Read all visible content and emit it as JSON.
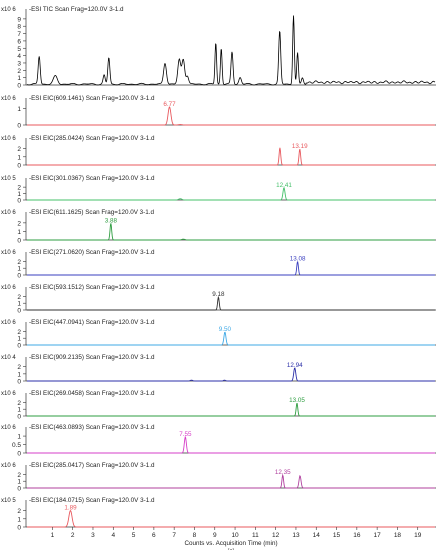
{
  "chart_data": [
    {
      "type": "line",
      "title": "-ESI TIC Scan Frag=120.0V 3-1.d",
      "exponent": "x10 6",
      "yticks": [
        0,
        1,
        2,
        3,
        4,
        5,
        6,
        7,
        8,
        9
      ],
      "ylim": [
        0,
        9.8
      ],
      "color": "#000000",
      "peaks": [
        {
          "x": 0.35,
          "y": 3.8,
          "w": 0.05
        },
        {
          "x": 1.15,
          "y": 1.1,
          "w": 0.1
        },
        {
          "x": 3.55,
          "y": 1.2,
          "w": 0.05
        },
        {
          "x": 3.78,
          "y": 3.6,
          "w": 0.05
        },
        {
          "x": 6.55,
          "y": 2.9,
          "w": 0.07
        },
        {
          "x": 7.25,
          "y": 3.3,
          "w": 0.07
        },
        {
          "x": 7.45,
          "y": 3.4,
          "w": 0.07
        },
        {
          "x": 7.65,
          "y": 1.1,
          "w": 0.06
        },
        {
          "x": 9.05,
          "y": 5.7,
          "w": 0.04
        },
        {
          "x": 9.32,
          "y": 4.9,
          "w": 0.04
        },
        {
          "x": 9.85,
          "y": 4.4,
          "w": 0.05
        },
        {
          "x": 10.25,
          "y": 0.9,
          "w": 0.06
        },
        {
          "x": 12.2,
          "y": 7.2,
          "w": 0.05
        },
        {
          "x": 12.88,
          "y": 9.4,
          "w": 0.04
        },
        {
          "x": 13.08,
          "y": 4.2,
          "w": 0.04
        },
        {
          "x": 13.32,
          "y": 0.9,
          "w": 0.05
        }
      ],
      "peak_labels": []
    },
    {
      "type": "line",
      "title": "-ESI EIC(609.1461) Scan Frag=120.0V 3-1.d",
      "exponent": "x10 6",
      "yticks": [
        0,
        1
      ],
      "ylim": [
        0,
        1.4
      ],
      "color": "#e8595e",
      "peaks": [
        {
          "x": 6.77,
          "y": 1.1,
          "w": 0.07
        },
        {
          "x": 7.3,
          "y": 0.03,
          "w": 0.08
        }
      ],
      "peak_labels": [
        {
          "x": 6.77,
          "text": "6.77"
        }
      ]
    },
    {
      "type": "line",
      "title": "-ESI EIC(285.0424) Scan Frag=120.0V 3-1.d",
      "exponent": "x10 6",
      "yticks": [
        0,
        1,
        2
      ],
      "ylim": [
        0,
        2.8
      ],
      "color": "#e8595e",
      "peaks": [
        {
          "x": 12.21,
          "y": 2.1,
          "w": 0.04
        },
        {
          "x": 13.19,
          "y": 1.95,
          "w": 0.04
        }
      ],
      "peak_labels": [
        {
          "x": 13.19,
          "text": "13.19"
        }
      ]
    },
    {
      "type": "line",
      "title": "-ESI EIC(301.0367) Scan Frag=120.0V 3-1.d",
      "exponent": "x10 5",
      "yticks": [
        0,
        1,
        2
      ],
      "ylim": [
        0,
        2.8
      ],
      "color": "#45c06a",
      "peaks": [
        {
          "x": 7.3,
          "y": 0.2,
          "w": 0.08
        },
        {
          "x": 12.41,
          "y": 1.9,
          "w": 0.05
        }
      ],
      "peak_labels": [
        {
          "x": 12.41,
          "text": "12.41"
        }
      ]
    },
    {
      "type": "line",
      "title": "-ESI EIC(611.1625) Scan Frag=120.0V 3-1.d",
      "exponent": "x10 6",
      "yticks": [
        0,
        1,
        2
      ],
      "ylim": [
        0,
        2.8
      ],
      "color": "#2e9d40",
      "peaks": [
        {
          "x": 3.88,
          "y": 1.95,
          "w": 0.04
        },
        {
          "x": 7.45,
          "y": 0.1,
          "w": 0.08
        }
      ],
      "peak_labels": [
        {
          "x": 3.88,
          "text": "3.88"
        }
      ]
    },
    {
      "type": "line",
      "title": "-ESI EIC(271.0620) Scan Frag=120.0V 3-1.d",
      "exponent": "x10 6",
      "yticks": [
        0,
        1,
        2
      ],
      "ylim": [
        0,
        2.8
      ],
      "color": "#3a3fbf",
      "peaks": [
        {
          "x": 13.08,
          "y": 2.0,
          "w": 0.04
        }
      ],
      "peak_labels": [
        {
          "x": 13.08,
          "text": "13.08"
        }
      ]
    },
    {
      "type": "line",
      "title": "-ESI EIC(593.1512) Scan Frag=120.0V 3-1.d",
      "exponent": "x10 6",
      "yticks": [
        0,
        1,
        2
      ],
      "ylim": [
        0,
        2.8
      ],
      "color": "#303030",
      "peaks": [
        {
          "x": 9.18,
          "y": 1.9,
          "w": 0.04
        }
      ],
      "peak_labels": [
        {
          "x": 9.18,
          "text": "9.18"
        }
      ]
    },
    {
      "type": "line",
      "title": "-ESI EIC(447.0941) Scan Frag=120.0V 3-1.d",
      "exponent": "x10 6",
      "yticks": [
        0,
        1,
        2
      ],
      "ylim": [
        0,
        2.8
      ],
      "color": "#3fa9e6",
      "peaks": [
        {
          "x": 9.5,
          "y": 1.9,
          "w": 0.05
        }
      ],
      "peak_labels": [
        {
          "x": 9.5,
          "text": "9.50"
        }
      ]
    },
    {
      "type": "line",
      "title": "-ESI EIC(909.2135) Scan Frag=120.0V 3-1.d",
      "exponent": "x10 4",
      "yticks": [
        0,
        1,
        2
      ],
      "ylim": [
        0,
        2.8
      ],
      "color": "#2b2fa8",
      "peaks": [
        {
          "x": 7.85,
          "y": 0.12,
          "w": 0.06
        },
        {
          "x": 9.48,
          "y": 0.12,
          "w": 0.05
        },
        {
          "x": 12.94,
          "y": 1.85,
          "w": 0.05
        }
      ],
      "peak_labels": [
        {
          "x": 12.94,
          "text": "12.94"
        }
      ]
    },
    {
      "type": "line",
      "title": "-ESI EIC(269.0458) Scan Frag=120.0V 3-1.d",
      "exponent": "x10 6",
      "yticks": [
        0,
        1,
        2
      ],
      "ylim": [
        0,
        2.8
      ],
      "color": "#2e9d40",
      "peaks": [
        {
          "x": 13.05,
          "y": 1.9,
          "w": 0.04
        }
      ],
      "peak_labels": [
        {
          "x": 13.05,
          "text": "13.05"
        }
      ]
    },
    {
      "type": "line",
      "title": "-ESI EIC(463.0893) Scan Frag=120.0V 3-1.d",
      "exponent": "x10 6",
      "yticks": [
        0,
        0.5,
        1
      ],
      "ylim": [
        0,
        1.3
      ],
      "color": "#d63fc8",
      "peaks": [
        {
          "x": 7.55,
          "y": 0.95,
          "w": 0.05
        }
      ],
      "peak_labels": [
        {
          "x": 7.55,
          "text": "7.55"
        }
      ]
    },
    {
      "type": "line",
      "title": "-ESI EIC(285.0417) Scan Frag=120.0V 3-1.d",
      "exponent": "x10 6",
      "yticks": [
        0,
        1,
        2
      ],
      "ylim": [
        0,
        2.8
      ],
      "color": "#b0409e",
      "peaks": [
        {
          "x": 12.35,
          "y": 1.9,
          "w": 0.04
        },
        {
          "x": 13.2,
          "y": 1.8,
          "w": 0.05
        }
      ],
      "peak_labels": [
        {
          "x": 12.35,
          "text": "12.35"
        }
      ]
    },
    {
      "type": "line",
      "title": "-ESI EIC(184.0715) Scan Frag=120.0V 3-1.d",
      "exponent": "x10 5",
      "yticks": [
        0,
        1,
        2
      ],
      "ylim": [
        0,
        2.8
      ],
      "color": "#e8595e",
      "peaks": [
        {
          "x": 1.89,
          "y": 2.0,
          "w": 0.08
        }
      ],
      "peak_labels": [
        {
          "x": 1.89,
          "text": "1.89"
        }
      ]
    }
  ],
  "xaxis": {
    "xlim": [
      -0.3,
      19.9
    ],
    "ticks": [
      1,
      2,
      3,
      4,
      5,
      6,
      7,
      8,
      9,
      10,
      11,
      12,
      13,
      14,
      15,
      16,
      17,
      18,
      19
    ],
    "label": "Counts vs. Acquisition Time (min)",
    "sublabel": "(a)"
  }
}
